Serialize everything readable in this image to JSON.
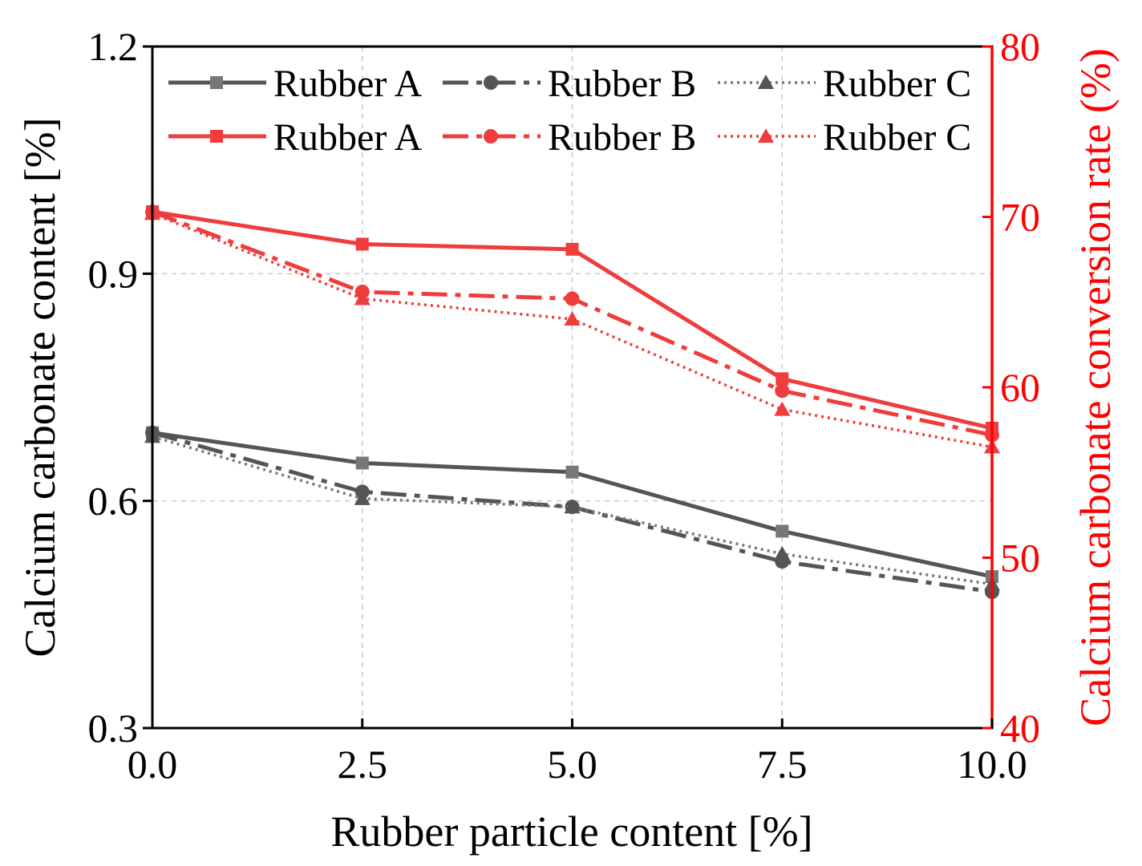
{
  "chart_data": {
    "type": "line",
    "x": [
      0.0,
      2.5,
      5.0,
      7.5,
      10.0
    ],
    "xticks": [
      "0.0",
      "2.5",
      "5.0",
      "7.5",
      "10.0"
    ],
    "xlabel": "Rubber particle content [%]",
    "xlim": [
      0,
      10
    ],
    "left_axis": {
      "label": "Calcium carbonate content [%]",
      "ylim": [
        0.3,
        1.2
      ],
      "ticks": [
        0.3,
        0.6,
        0.9,
        1.2
      ],
      "tick_labels": [
        "0.3",
        "0.6",
        "0.9",
        "1.2"
      ],
      "color": "#000000"
    },
    "right_axis": {
      "label": "Calcium carbonate conversion rate (%)",
      "ylim": [
        40,
        80
      ],
      "ticks": [
        40,
        50,
        60,
        70,
        80
      ],
      "tick_labels": [
        "40",
        "50",
        "60",
        "70",
        "80"
      ],
      "color": "#ff0000"
    },
    "grid": true,
    "legend_position": "top",
    "series": [
      {
        "name": "Rubber A",
        "axis": "left",
        "color": "#555555",
        "marker_color": "#777777",
        "dash": "solid",
        "marker": "square",
        "values": [
          0.69,
          0.65,
          0.638,
          0.56,
          0.5
        ]
      },
      {
        "name": "Rubber B",
        "axis": "left",
        "color": "#555555",
        "marker_color": "#555555",
        "dash": "dashdot",
        "marker": "circle",
        "values": [
          0.69,
          0.612,
          0.592,
          0.52,
          0.48
        ]
      },
      {
        "name": "Rubber C",
        "axis": "left",
        "color": "#777777",
        "marker_color": "#555555",
        "dash": "dotted",
        "marker": "triangle",
        "values": [
          0.685,
          0.603,
          0.592,
          0.53,
          0.49
        ]
      },
      {
        "name": "Rubber A",
        "axis": "right",
        "color": "#ef3c3c",
        "marker_color": "#ef3c3c",
        "dash": "solid",
        "marker": "square",
        "values": [
          70.3,
          68.4,
          68.1,
          60.5,
          57.6
        ]
      },
      {
        "name": "Rubber B",
        "axis": "right",
        "color": "#ef3c3c",
        "marker_color": "#ef3c3c",
        "dash": "dashdot",
        "marker": "circle",
        "values": [
          70.3,
          65.6,
          65.2,
          59.8,
          57.2
        ]
      },
      {
        "name": "Rubber C",
        "axis": "right",
        "color": "#ef3c3c",
        "marker_color": "#ef3c3c",
        "dash": "dotted",
        "marker": "triangle",
        "values": [
          70.2,
          65.2,
          64.0,
          58.7,
          56.5
        ]
      }
    ]
  }
}
